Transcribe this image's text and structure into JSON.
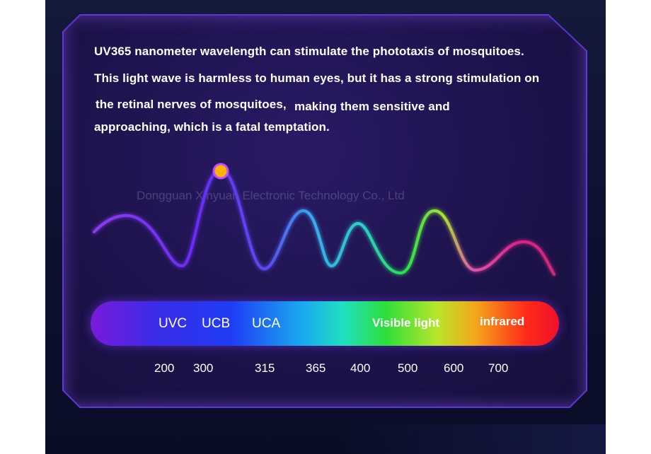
{
  "description": {
    "line1": "UV365 nanometer wavelength can stimulate the phototaxis of mosquitoes.",
    "line2": "This light wave is harmless to human eyes, but it has a strong stimulation on",
    "line3a": "the retinal nerves of mosquitoes,",
    "line3b": "making them sensitive and",
    "line4": "approaching, which is a fatal temptation."
  },
  "watermark": "Dongguan Xinyuan Electronic Technology Co., Ltd",
  "spectrum": {
    "bands": [
      "UVC",
      "UCB",
      "UCA",
      "Visible light",
      "infrared"
    ],
    "wavelengths": [
      "200",
      "300",
      "315",
      "365",
      "400",
      "500",
      "600",
      "700"
    ]
  },
  "colors": {
    "panel": "#1f1450",
    "panel_border": "#6a3cf0",
    "marker_fill": "#ffb300",
    "marker_ring": "#c04cff"
  }
}
